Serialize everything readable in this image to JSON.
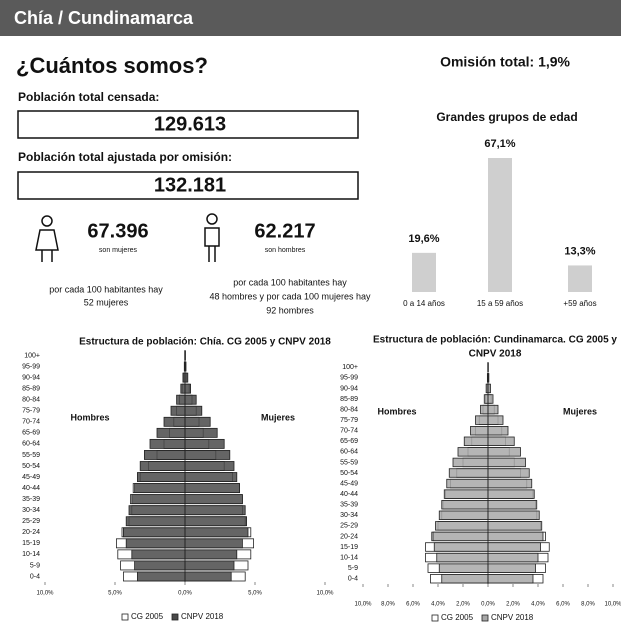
{
  "header": {
    "title": "Chía / Cundinamarca"
  },
  "heading": "¿Cuántos somos?",
  "omission": "Omisión total: 1,9%",
  "censada": {
    "label": "Población total censada:",
    "value": "129.613"
  },
  "ajustada": {
    "label": "Población total ajustada por omisión:",
    "value": "132.181"
  },
  "women": {
    "value": "67.396",
    "caption": "son mujeres",
    "note": [
      "por cada 100 habitantes hay",
      "52 mujeres"
    ]
  },
  "men": {
    "value": "62.217",
    "caption": "son hombres",
    "note": [
      "por cada 100 habitantes hay",
      "48 hombres y por cada 100 mujeres hay",
      "92 hombres"
    ]
  },
  "chart_data": [
    {
      "type": "bar",
      "title": "Grandes grupos de edad",
      "categories": [
        "0 a 14 años",
        "15 a 59 años",
        "+59 años"
      ],
      "values": [
        19.6,
        67.1,
        13.3
      ],
      "value_labels": [
        "19,6%",
        "67,1%",
        "13,3%"
      ],
      "color": "#cfcfcf"
    },
    {
      "type": "pyramid",
      "title": [
        "Estructura de población: Chía. CG 2005 y CNPV 2018"
      ],
      "left_label": "Hombres",
      "right_label": "Mujeres",
      "categories": [
        "0-4",
        "5-9",
        "10-14",
        "15-19",
        "20-24",
        "25-29",
        "30-34",
        "35-39",
        "40-44",
        "45-49",
        "50-54",
        "55-59",
        "60-64",
        "65-69",
        "70-74",
        "75-79",
        "80-84",
        "85-89",
        "90-94",
        "95-99",
        "100+"
      ],
      "xlim": [
        -10,
        10
      ],
      "xticks": [
        {
          "value": -10,
          "label": "10,0%"
        },
        {
          "value": -5,
          "label": "5,0%"
        },
        {
          "value": 0,
          "label": "0,0%"
        },
        {
          "value": 5,
          "label": "5,0%"
        },
        {
          "value": 10,
          "label": "10,0%"
        }
      ],
      "series": [
        {
          "name": "CG 2005",
          "color": "#ffffff",
          "male": [
            4.4,
            4.6,
            4.8,
            4.9,
            4.5,
            4.0,
            3.8,
            3.9,
            3.7,
            3.2,
            2.6,
            2.0,
            1.5,
            1.1,
            0.8,
            0.6,
            0.4,
            0.2,
            0.1,
            0.04,
            0.01
          ],
          "female": [
            4.3,
            4.5,
            4.7,
            4.9,
            4.7,
            4.3,
            4.1,
            4.1,
            3.9,
            3.4,
            2.8,
            2.2,
            1.7,
            1.3,
            1.0,
            0.8,
            0.5,
            0.3,
            0.12,
            0.05,
            0.02
          ]
        },
        {
          "name": "CNPV 2018",
          "color": "#4a4a4a",
          "male": [
            3.4,
            3.6,
            3.8,
            4.2,
            4.4,
            4.2,
            4.0,
            3.8,
            3.6,
            3.4,
            3.2,
            2.9,
            2.5,
            2.0,
            1.5,
            1.0,
            0.6,
            0.3,
            0.15,
            0.05,
            0.02
          ],
          "female": [
            3.3,
            3.5,
            3.7,
            4.1,
            4.5,
            4.4,
            4.3,
            4.1,
            3.9,
            3.7,
            3.5,
            3.2,
            2.8,
            2.3,
            1.8,
            1.2,
            0.8,
            0.4,
            0.2,
            0.07,
            0.03
          ]
        }
      ]
    },
    {
      "type": "pyramid",
      "title": [
        "Estructura de población: Cundinamarca. CG 2005 y",
        "CNPV 2018"
      ],
      "left_label": "Hombres",
      "right_label": "Mujeres",
      "categories": [
        "0-4",
        "5-9",
        "10-14",
        "15-19",
        "20-24",
        "25-29",
        "30-34",
        "35-39",
        "40-44",
        "45-49",
        "50-54",
        "55-59",
        "60-64",
        "65-69",
        "70-74",
        "75-79",
        "80-84",
        "85-89",
        "90-94",
        "95-99",
        "100+"
      ],
      "xlim": [
        -10,
        10
      ],
      "xticks": [
        {
          "value": -10,
          "label": "10,0%"
        },
        {
          "value": -8,
          "label": "8,0%"
        },
        {
          "value": -6,
          "label": "6,0%"
        },
        {
          "value": -4,
          "label": "4,0%"
        },
        {
          "value": -2,
          "label": "2,0%"
        },
        {
          "value": 0,
          "label": "0,0%"
        },
        {
          "value": 2,
          "label": "2,0%"
        },
        {
          "value": 4,
          "label": "4,0%"
        },
        {
          "value": 6,
          "label": "6,0%"
        },
        {
          "value": 8,
          "label": "8,0%"
        },
        {
          "value": 10,
          "label": "10,0%"
        }
      ],
      "series": [
        {
          "name": "CG 2005",
          "color": "#ffffff",
          "male": [
            4.6,
            4.8,
            5.0,
            5.0,
            4.5,
            4.0,
            3.7,
            3.6,
            3.4,
            3.0,
            2.5,
            2.0,
            1.6,
            1.3,
            1.0,
            0.7,
            0.4,
            0.2,
            0.08,
            0.03,
            0.01
          ],
          "female": [
            4.4,
            4.6,
            4.8,
            4.9,
            4.6,
            4.2,
            3.9,
            3.8,
            3.6,
            3.1,
            2.6,
            2.1,
            1.7,
            1.4,
            1.1,
            0.8,
            0.5,
            0.25,
            0.1,
            0.04,
            0.01
          ]
        },
        {
          "name": "CNPV 2018",
          "color": "#a8a8a8",
          "male": [
            3.7,
            3.9,
            4.1,
            4.3,
            4.4,
            4.2,
            3.9,
            3.7,
            3.5,
            3.3,
            3.1,
            2.8,
            2.4,
            1.9,
            1.4,
            1.0,
            0.6,
            0.3,
            0.15,
            0.05,
            0.02
          ],
          "female": [
            3.6,
            3.8,
            4.0,
            4.2,
            4.4,
            4.3,
            4.1,
            3.9,
            3.7,
            3.5,
            3.3,
            3.0,
            2.6,
            2.1,
            1.6,
            1.2,
            0.8,
            0.4,
            0.2,
            0.07,
            0.03
          ]
        }
      ]
    }
  ]
}
